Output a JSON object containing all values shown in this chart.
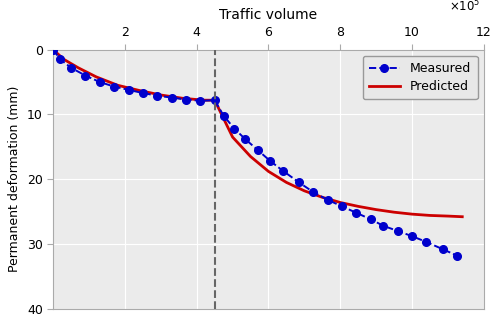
{
  "xlabel_top": "Traffic volume",
  "ylabel": "Permanent deformation (mm)",
  "xlim": [
    0,
    1200000.0
  ],
  "ylim": [
    40,
    0
  ],
  "xticks": [
    200000.0,
    400000.0,
    600000.0,
    800000.0,
    1000000.0,
    1200000.0
  ],
  "xtick_labels": [
    "2",
    "4",
    "6",
    "8",
    "10",
    "12"
  ],
  "yticks": [
    0,
    10,
    20,
    30,
    40
  ],
  "dashed_vline_x": 450000.0,
  "measured_x": [
    0,
    20000.0,
    50000.0,
    90000.0,
    130000.0,
    170000.0,
    210000.0,
    250000.0,
    290000.0,
    330000.0,
    370000.0,
    410000.0,
    450000.0,
    475000.0,
    505000.0,
    535000.0,
    570000.0,
    605000.0,
    640000.0,
    685000.0,
    725000.0,
    765000.0,
    805000.0,
    845000.0,
    885000.0,
    920000.0,
    960000.0,
    1000000.0,
    1040000.0,
    1085000.0,
    1125000.0
  ],
  "measured_y": [
    0,
    1.5,
    2.8,
    4.0,
    5.0,
    5.7,
    6.2,
    6.7,
    7.1,
    7.4,
    7.7,
    7.9,
    7.8,
    10.2,
    12.2,
    13.8,
    15.5,
    17.2,
    18.7,
    20.5,
    22.0,
    23.2,
    24.2,
    25.2,
    26.2,
    27.2,
    28.0,
    28.8,
    29.7,
    30.8,
    31.8
  ],
  "predicted_x": [
    0,
    30000.0,
    70000.0,
    120000.0,
    180000.0,
    240000.0,
    300000.0,
    360000.0,
    420000.0,
    449900.0,
    450100.0,
    500000.0,
    550000.0,
    600000.0,
    650000.0,
    700000.0,
    750000.0,
    800000.0,
    850000.0,
    900000.0,
    950000.0,
    1000000.0,
    1050000.0,
    1100000.0,
    1140000.0
  ],
  "predicted_y": [
    0,
    1.5,
    2.8,
    4.2,
    5.5,
    6.3,
    7.0,
    7.5,
    7.8,
    7.8,
    7.8,
    13.5,
    16.5,
    18.8,
    20.5,
    21.8,
    22.8,
    23.6,
    24.2,
    24.7,
    25.1,
    25.4,
    25.6,
    25.7,
    25.8
  ],
  "measured_color": "#0000cc",
  "predicted_color": "#cc0000",
  "vline_color": "#666666",
  "plot_bg_color": "#ebebeb",
  "fig_bg_color": "#ffffff",
  "legend_bg": "#e8e8e8",
  "grid_color": "#ffffff",
  "spine_color": "#aaaaaa"
}
